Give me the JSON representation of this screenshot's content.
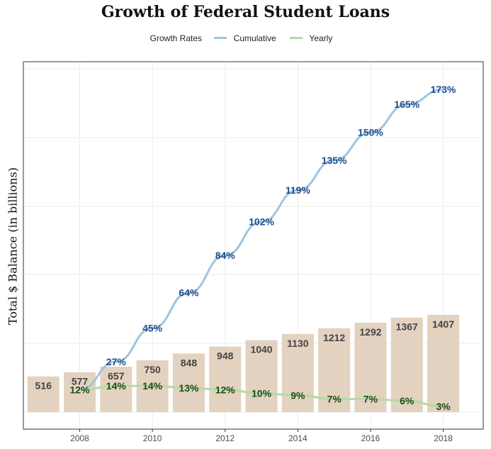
{
  "chart_data": {
    "type": "bar",
    "title": "Growth of Federal Student Loans",
    "ylabel": "Total $ Balance (in billions)",
    "xlabel": "",
    "legend": {
      "title": "Growth Rates",
      "position": "top",
      "entries": [
        {
          "name": "Cumulative",
          "color": "#9ec5e0"
        },
        {
          "name": "Yearly",
          "color": "#b5d9a7"
        }
      ]
    },
    "x": [
      2007,
      2008,
      2009,
      2010,
      2011,
      2012,
      2013,
      2014,
      2015,
      2016,
      2017,
      2018
    ],
    "values": [
      516,
      577,
      657,
      750,
      848,
      948,
      1040,
      1130,
      1212,
      1292,
      1367,
      1407
    ],
    "xticks": [
      2008,
      2010,
      2012,
      2014,
      2016,
      2018
    ],
    "xlim": [
      2006.45,
      2019.1
    ],
    "ylim": [
      0,
      1600
    ],
    "grid": true,
    "bar_color": "#e3d2bf",
    "series": [
      {
        "name": "Cumulative",
        "color": "#9ec5e0",
        "label_color": "#1e4e8c",
        "points": [
          {
            "x": 2008,
            "y": 12,
            "label": ""
          },
          {
            "x": 2009,
            "y": 27,
            "label": "27%"
          },
          {
            "x": 2010,
            "y": 45,
            "label": "45%"
          },
          {
            "x": 2011,
            "y": 64,
            "label": "64%"
          },
          {
            "x": 2012,
            "y": 84,
            "label": "84%"
          },
          {
            "x": 2013,
            "y": 102,
            "label": "102%"
          },
          {
            "x": 2014,
            "y": 119,
            "label": "119%"
          },
          {
            "x": 2015,
            "y": 135,
            "label": "135%"
          },
          {
            "x": 2016,
            "y": 150,
            "label": "150%"
          },
          {
            "x": 2017,
            "y": 165,
            "label": "165%"
          },
          {
            "x": 2018,
            "y": 173,
            "label": "173%"
          }
        ]
      },
      {
        "name": "Yearly",
        "color": "#b5d9a7",
        "label_color": "#1d4d14",
        "points": [
          {
            "x": 2008,
            "y": 12,
            "label": "12%"
          },
          {
            "x": 2009,
            "y": 14,
            "label": "14%"
          },
          {
            "x": 2010,
            "y": 14,
            "label": "14%"
          },
          {
            "x": 2011,
            "y": 13,
            "label": "13%"
          },
          {
            "x": 2012,
            "y": 12,
            "label": "12%"
          },
          {
            "x": 2013,
            "y": 10,
            "label": "10%"
          },
          {
            "x": 2014,
            "y": 9,
            "label": "9%"
          },
          {
            "x": 2015,
            "y": 7,
            "label": "7%"
          },
          {
            "x": 2016,
            "y": 7,
            "label": "7%"
          },
          {
            "x": 2017,
            "y": 6,
            "label": "6%"
          },
          {
            "x": 2018,
            "y": 3,
            "label": "3%"
          }
        ]
      }
    ]
  }
}
